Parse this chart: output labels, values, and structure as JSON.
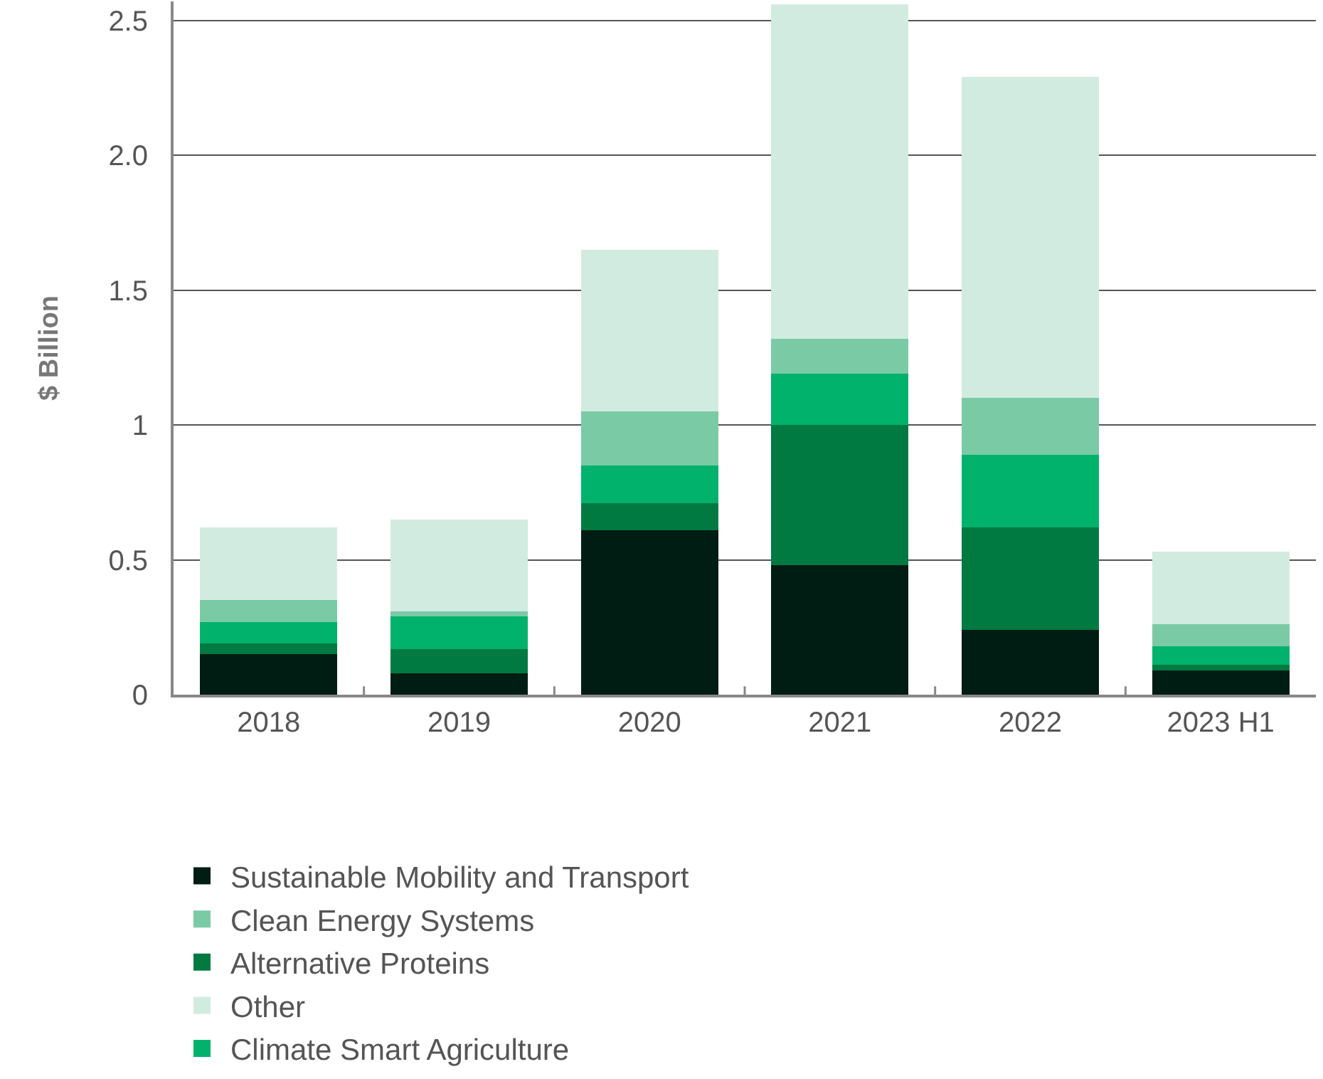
{
  "chart_data": {
    "type": "bar",
    "stacked": true,
    "ylabel": "$ Billion",
    "categories": [
      "2018",
      "2019",
      "2020",
      "2021",
      "2022",
      "2023 H1"
    ],
    "series": [
      {
        "name": "Sustainable Mobility and Transport",
        "color": "#001d13",
        "values": [
          0.15,
          0.08,
          0.61,
          0.48,
          0.24,
          0.09
        ]
      },
      {
        "name": "Alternative Proteins",
        "color": "#007a41",
        "values": [
          0.04,
          0.09,
          0.1,
          0.52,
          0.38,
          0.02
        ]
      },
      {
        "name": "Climate Smart Agriculture",
        "color": "#00b26c",
        "values": [
          0.08,
          0.12,
          0.14,
          0.19,
          0.27,
          0.07
        ]
      },
      {
        "name": "Clean Energy Systems",
        "color": "#7bcaa6",
        "values": [
          0.08,
          0.02,
          0.2,
          0.13,
          0.21,
          0.08
        ]
      },
      {
        "name": "Other",
        "color": "#d2ebe0",
        "values": [
          0.27,
          0.34,
          0.6,
          1.24,
          1.19,
          0.27
        ]
      }
    ],
    "ylim": [
      0,
      2.57
    ],
    "yticks": [
      0,
      0.5,
      1,
      1.5,
      {
        "value": 2,
        "label": "2.0"
      },
      2.5
    ],
    "grid": "y",
    "legend": "bottom"
  }
}
